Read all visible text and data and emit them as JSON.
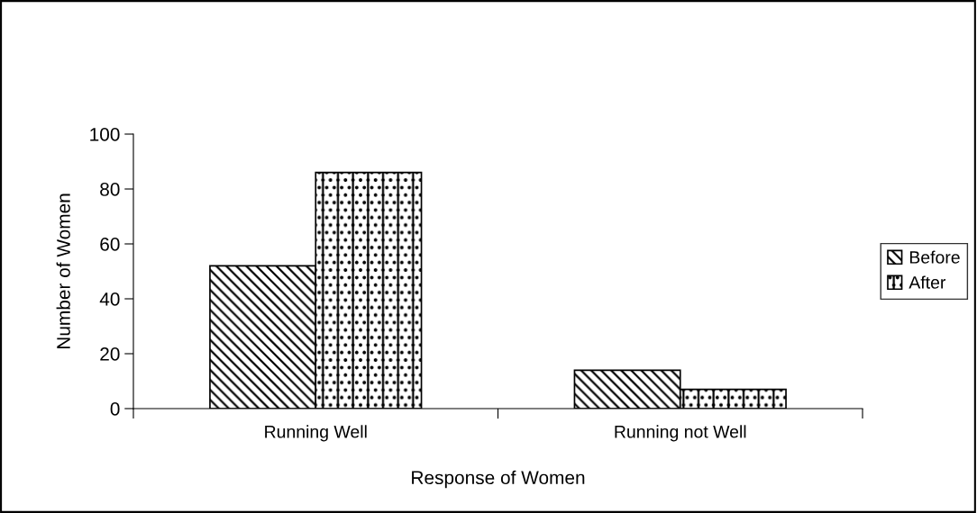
{
  "chart_data": {
    "type": "bar",
    "xlabel": "Response of Women",
    "ylabel": "Number of Women",
    "categories": [
      "Running Well",
      "Running not Well"
    ],
    "series": [
      {
        "name": "Before",
        "color": "#000000",
        "values": [
          52,
          14
        ]
      },
      {
        "name": "After",
        "color": "#000000",
        "values": [
          86,
          7
        ]
      }
    ],
    "ylim": [
      0,
      100
    ],
    "yticks": [
      0,
      20,
      40,
      60,
      80,
      100
    ],
    "grid": false,
    "legend": "right"
  }
}
